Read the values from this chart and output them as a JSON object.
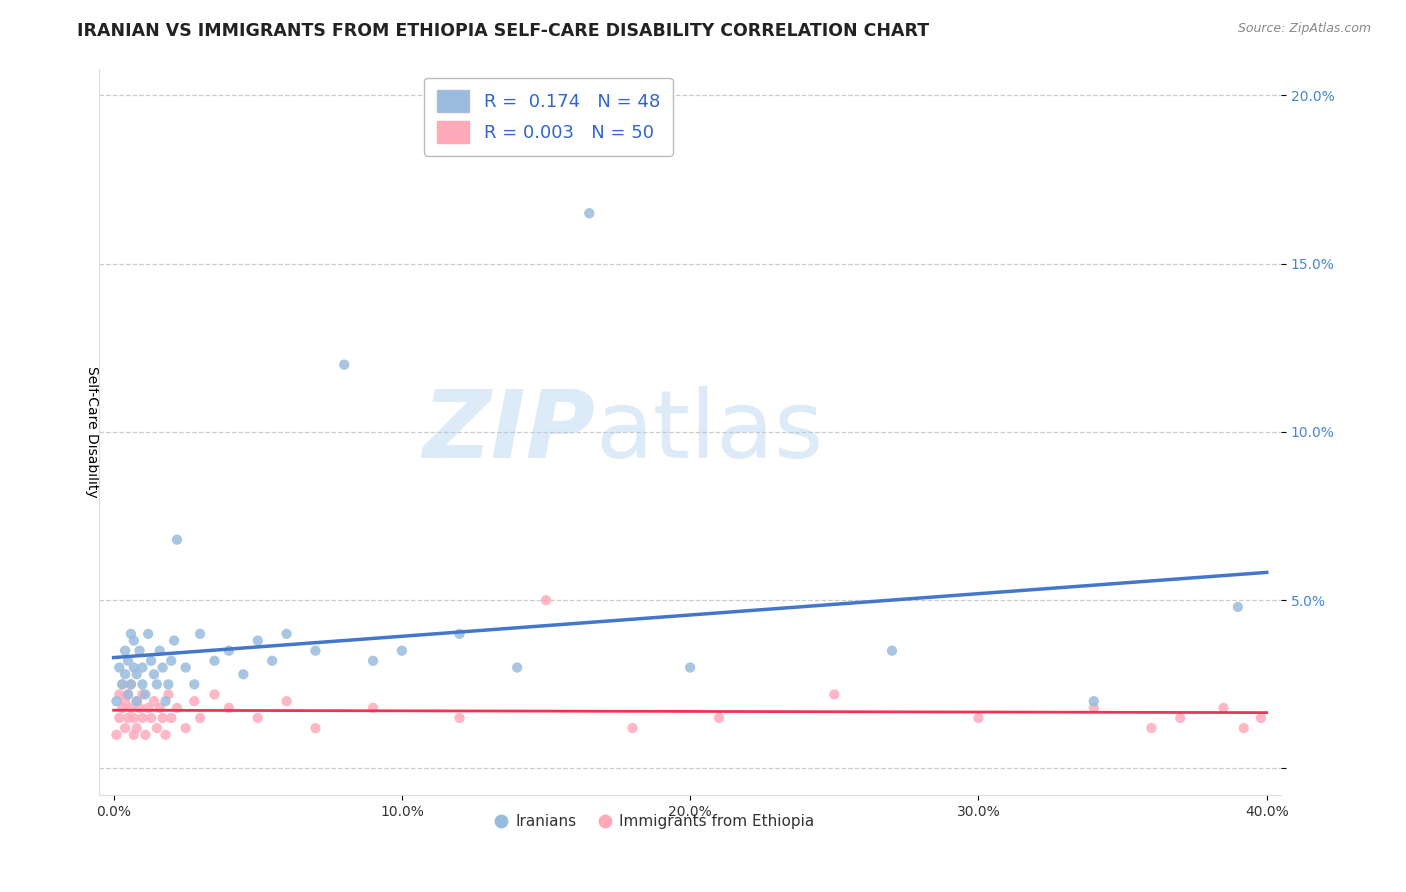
{
  "title": "IRANIAN VS IMMIGRANTS FROM ETHIOPIA SELF-CARE DISABILITY CORRELATION CHART",
  "source": "Source: ZipAtlas.com",
  "ylabel": "Self-Care Disability",
  "xlim": [
    -0.005,
    0.405
  ],
  "ylim": [
    -0.008,
    0.208
  ],
  "xticks": [
    0.0,
    0.1,
    0.2,
    0.3,
    0.4
  ],
  "xticklabels": [
    "0.0%",
    "10.0%",
    "20.0%",
    "30.0%",
    "40.0%"
  ],
  "yticks": [
    0.0,
    0.05,
    0.1,
    0.15,
    0.2
  ],
  "yticklabels": [
    "",
    "5.0%",
    "10.0%",
    "15.0%",
    "20.0%"
  ],
  "legend_r1": "R =  0.174   N = 48",
  "legend_r2": "R = 0.003   N = 50",
  "blue_color": "#99BBDD",
  "pink_color": "#FFAABB",
  "blue_line_color": "#4477CC",
  "pink_line_color": "#EE3355",
  "watermark_zip": "ZIP",
  "watermark_atlas": "atlas",
  "background_color": "#FFFFFF",
  "grid_color": "#CCCCCC",
  "iranians_x": [
    0.001,
    0.002,
    0.003,
    0.004,
    0.004,
    0.005,
    0.005,
    0.006,
    0.006,
    0.007,
    0.007,
    0.008,
    0.008,
    0.009,
    0.01,
    0.01,
    0.011,
    0.012,
    0.013,
    0.014,
    0.015,
    0.016,
    0.017,
    0.018,
    0.019,
    0.02,
    0.021,
    0.022,
    0.025,
    0.028,
    0.03,
    0.035,
    0.04,
    0.045,
    0.05,
    0.055,
    0.06,
    0.07,
    0.08,
    0.09,
    0.1,
    0.12,
    0.14,
    0.165,
    0.2,
    0.27,
    0.34,
    0.39
  ],
  "iranians_y": [
    0.02,
    0.03,
    0.025,
    0.035,
    0.028,
    0.022,
    0.032,
    0.04,
    0.025,
    0.03,
    0.038,
    0.028,
    0.02,
    0.035,
    0.025,
    0.03,
    0.022,
    0.04,
    0.032,
    0.028,
    0.025,
    0.035,
    0.03,
    0.02,
    0.025,
    0.032,
    0.038,
    0.068,
    0.03,
    0.025,
    0.04,
    0.032,
    0.035,
    0.028,
    0.038,
    0.032,
    0.04,
    0.035,
    0.12,
    0.032,
    0.035,
    0.04,
    0.03,
    0.165,
    0.03,
    0.035,
    0.02,
    0.048
  ],
  "ethiopia_x": [
    0.001,
    0.002,
    0.002,
    0.003,
    0.003,
    0.004,
    0.004,
    0.005,
    0.005,
    0.006,
    0.006,
    0.007,
    0.007,
    0.008,
    0.008,
    0.009,
    0.01,
    0.01,
    0.011,
    0.012,
    0.013,
    0.014,
    0.015,
    0.016,
    0.017,
    0.018,
    0.019,
    0.02,
    0.022,
    0.025,
    0.028,
    0.03,
    0.035,
    0.04,
    0.05,
    0.06,
    0.07,
    0.09,
    0.12,
    0.15,
    0.18,
    0.21,
    0.25,
    0.3,
    0.34,
    0.36,
    0.37,
    0.385,
    0.392,
    0.398
  ],
  "ethiopia_y": [
    0.01,
    0.015,
    0.022,
    0.018,
    0.025,
    0.012,
    0.02,
    0.015,
    0.022,
    0.018,
    0.025,
    0.01,
    0.015,
    0.02,
    0.012,
    0.018,
    0.015,
    0.022,
    0.01,
    0.018,
    0.015,
    0.02,
    0.012,
    0.018,
    0.015,
    0.01,
    0.022,
    0.015,
    0.018,
    0.012,
    0.02,
    0.015,
    0.022,
    0.018,
    0.015,
    0.02,
    0.012,
    0.018,
    0.015,
    0.05,
    0.012,
    0.015,
    0.022,
    0.015,
    0.018,
    0.012,
    0.015,
    0.018,
    0.012,
    0.015
  ]
}
